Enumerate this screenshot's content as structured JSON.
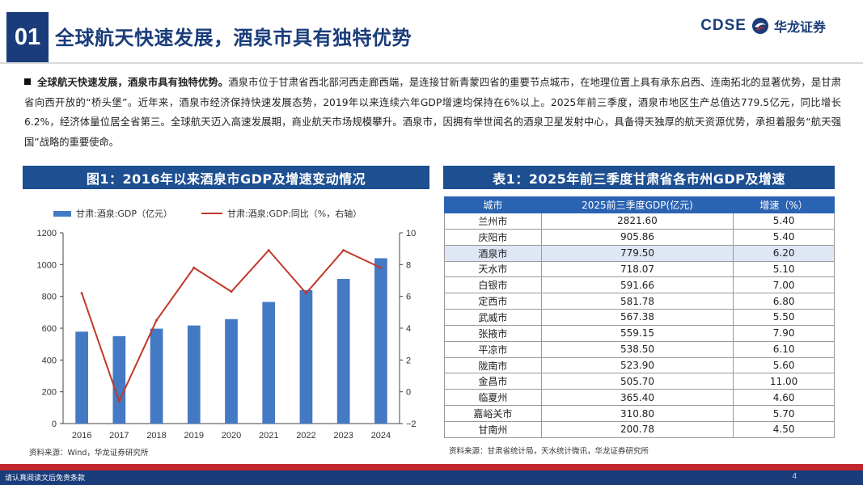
{
  "header": {
    "section_number": "01",
    "title": "全球航天快速发展，酒泉市具有独特优势",
    "logo_text": "CDSE",
    "logo_cn": "华龙证券"
  },
  "bullet": {
    "lead": "全球航天快速发展，酒泉市具有独特优势。",
    "body": "酒泉市位于甘肃省西北部河西走廊西端，是连接甘新青蒙四省的重要节点城市，在地理位置上具有承东启西、连南拓北的显著优势，是甘肃省向西开放的“桥头堡”。近年来，酒泉市经济保持快速发展态势，2019年以来连续六年GDP增速均保持在6%以上。2025年前三季度，酒泉市地区生产总值达779.5亿元，同比增长6.2%，经济体量位居全省第三。全球航天迈入高速发展期，商业航天市场规模攀升。酒泉市，因拥有举世闻名的酒泉卫星发射中心，具备得天独厚的航天资源优势，承担着服务“航天强国”战略的重要使命。"
  },
  "figure": {
    "title": "图1：2016年以来酒泉市GDP及增速变动情况",
    "source": "资料来源：Wind，华龙证券研究所"
  },
  "chart_data": {
    "type": "bar+line",
    "categories": [
      "2016",
      "2017",
      "2018",
      "2019",
      "2020",
      "2021",
      "2022",
      "2023",
      "2024"
    ],
    "series": [
      {
        "name": "甘肃:酒泉:GDP（亿元）",
        "kind": "bar",
        "axis": "left",
        "color": "#4479c4",
        "values": [
          578,
          550,
          597,
          617,
          657,
          765,
          840,
          910,
          1040
        ]
      },
      {
        "name": "甘肃:酒泉:GDP:同比（%，右轴）",
        "kind": "line",
        "axis": "right",
        "color": "#c0392b",
        "values": [
          6.2,
          -0.6,
          4.5,
          7.8,
          6.3,
          8.9,
          6.2,
          8.9,
          7.8
        ]
      }
    ],
    "y_left": {
      "min": 0,
      "max": 1200,
      "ticks": [
        "0",
        "200",
        "400",
        "600",
        "800",
        "1000",
        "1200"
      ]
    },
    "y_right": {
      "min": -2,
      "max": 10,
      "ticks": [
        "−2",
        "0",
        "2",
        "4",
        "6",
        "8",
        "10"
      ]
    },
    "legend_position": "top"
  },
  "table": {
    "title": "表1：2025年前三季度甘肃省各市州GDP及增速",
    "headers": [
      "城市",
      "2025前三季度GDP(亿元)",
      "增速（%）"
    ],
    "rows": [
      [
        "兰州市",
        "2821.60",
        "5.40"
      ],
      [
        "庆阳市",
        "905.86",
        "5.40"
      ],
      [
        "酒泉市",
        "779.50",
        "6.20"
      ],
      [
        "天水市",
        "718.07",
        "5.10"
      ],
      [
        "白银市",
        "591.66",
        "7.00"
      ],
      [
        "定西市",
        "581.78",
        "6.80"
      ],
      [
        "武威市",
        "567.38",
        "5.50"
      ],
      [
        "张掖市",
        "559.15",
        "7.90"
      ],
      [
        "平凉市",
        "538.50",
        "6.10"
      ],
      [
        "陇南市",
        "523.90",
        "5.60"
      ],
      [
        "金昌市",
        "505.70",
        "11.00"
      ],
      [
        "临夏州",
        "365.40",
        "4.60"
      ],
      [
        "嘉峪关市",
        "310.80",
        "5.70"
      ],
      [
        "甘南州",
        "200.78",
        "4.50"
      ]
    ],
    "highlight_city": "酒泉市",
    "source": "资料来源：甘肃省统计局，天水统计微讯，华龙证券研究所"
  },
  "footer": {
    "disclaimer": "请认真阅读文后免责条款",
    "page_number": "4"
  },
  "colors": {
    "brand_navy": "#1a3c7a",
    "panel_blue": "#1d4f91",
    "header_blue": "#2b63b3",
    "bar_blue": "#4479c4",
    "line_red": "#c0392b",
    "footer_red": "#c0272d"
  }
}
